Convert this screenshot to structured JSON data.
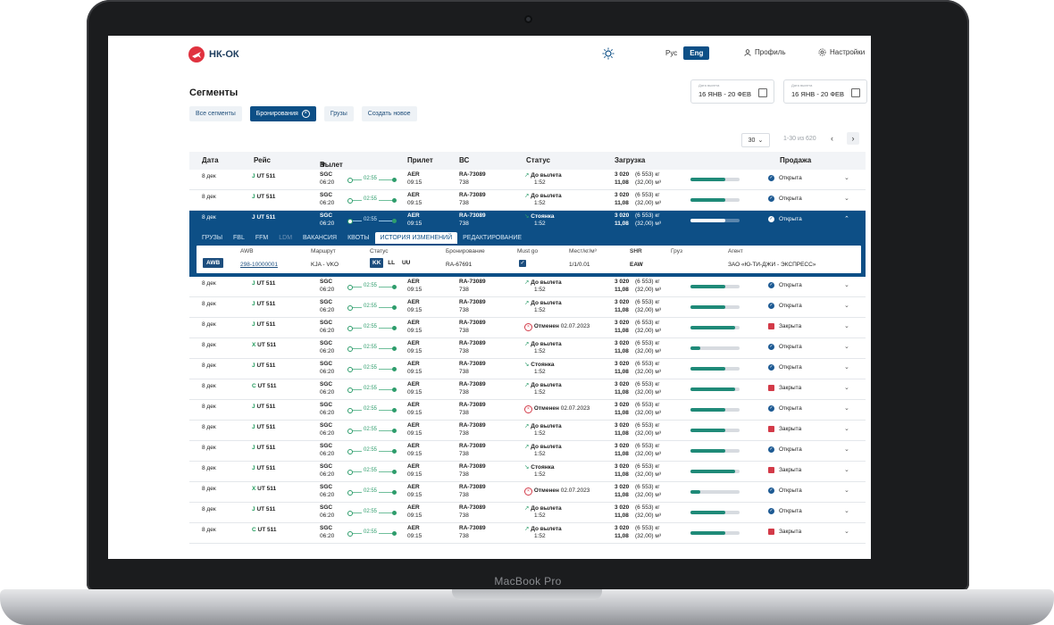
{
  "device": {
    "brand": "MacBook Pro"
  },
  "app": {
    "logo_text": "НК-ОК"
  },
  "header": {
    "lang_ru": "Рус",
    "lang_en": "Eng",
    "profile": "Профиль",
    "settings": "Настройки"
  },
  "page": {
    "title": "Сегменты"
  },
  "dates": {
    "from_label": "Дата вылета",
    "from_value": "16 ЯНВ - 20 ФЕВ",
    "to_label": "Дата вылета",
    "to_value": "16 ЯНВ - 20 ФЕВ"
  },
  "tabs": {
    "all": "Все сегменты",
    "bookings": "Бронирования",
    "cargo": "Грузы",
    "create": "Создать новое"
  },
  "pager": {
    "per_page": "30",
    "range": "1-30 из 620",
    "prev": "‹",
    "next": "›"
  },
  "columns": {
    "date": "Дата",
    "flight": "Рейс",
    "departure": "Вылет",
    "arrival": "Прилет",
    "aircraft": "ВС",
    "status": "Статус",
    "load": "Загрузка",
    "sale": "Продажа"
  },
  "rows": [
    {
      "date": "8 дек",
      "cls": "J",
      "flight": "UT 511",
      "dep": "SGC",
      "dep_time": "06:20",
      "dur": "02:55",
      "arr": "AER",
      "arr_time": "09:15",
      "ac": "RA-73089",
      "ac_type": "738",
      "status": "До вылета",
      "status_sub": "1:52",
      "status_kind": "up",
      "load1": "3 020",
      "load1_sub": "(6 553) кг",
      "load2": "11,08",
      "load2_sub": "(32,00) м³",
      "fill": 0.7,
      "sale": "Открыта",
      "sale_kind": "open"
    },
    {
      "date": "8 дек",
      "cls": "J",
      "flight": "UT 511",
      "dep": "SGC",
      "dep_time": "06:20",
      "dur": "02:55",
      "arr": "AER",
      "arr_time": "09:15",
      "ac": "RA-73089",
      "ac_type": "738",
      "status": "До вылета",
      "status_sub": "1:52",
      "status_kind": "up",
      "load1": "3 020",
      "load1_sub": "(6 553) кг",
      "load2": "11,08",
      "load2_sub": "(32,00) м³",
      "fill": 0.7,
      "sale": "Открыта",
      "sale_kind": "open"
    },
    {
      "date": "8 дек",
      "cls": "J",
      "flight": "UT 511",
      "dep": "SGC",
      "dep_time": "06:20",
      "dur": "02:55",
      "arr": "AER",
      "arr_time": "09:15",
      "ac": "RA-73089",
      "ac_type": "738",
      "status": "Стоянка",
      "status_sub": "1:52",
      "status_kind": "down",
      "load1": "3 020",
      "load1_sub": "(6 553) кг",
      "load2": "11,08",
      "load2_sub": "(32,00) м³",
      "fill": 0.7,
      "sale": "Открыта",
      "sale_kind": "open"
    },
    {
      "date": "8 дек",
      "cls": "J",
      "flight": "UT 511",
      "dep": "SGC",
      "dep_time": "06:20",
      "dur": "02:55",
      "arr": "AER",
      "arr_time": "09:15",
      "ac": "RA-73089",
      "ac_type": "738",
      "status": "До вылета",
      "status_sub": "1:52",
      "status_kind": "up",
      "load1": "3 020",
      "load1_sub": "(6 553) кг",
      "load2": "11,08",
      "load2_sub": "(32,00) м³",
      "fill": 0.7,
      "sale": "Открыта",
      "sale_kind": "open"
    },
    {
      "date": "8 дек",
      "cls": "J",
      "flight": "UT 511",
      "dep": "SGC",
      "dep_time": "06:20",
      "dur": "02:55",
      "arr": "AER",
      "arr_time": "09:15",
      "ac": "RA-73089",
      "ac_type": "738",
      "status": "До вылета",
      "status_sub": "1:52",
      "status_kind": "up",
      "load1": "3 020",
      "load1_sub": "(6 553) кг",
      "load2": "11,08",
      "load2_sub": "(32,00) м³",
      "fill": 0.7,
      "sale": "Открыта",
      "sale_kind": "open"
    },
    {
      "date": "8 дек",
      "cls": "J",
      "flight": "UT 511",
      "dep": "SGC",
      "dep_time": "06:20",
      "dur": "02:55",
      "arr": "AER",
      "arr_time": "09:15",
      "ac": "RA-73089",
      "ac_type": "738",
      "status": "Отменен",
      "status_sub": "02.07.2023",
      "status_kind": "cancel",
      "load1": "3 020",
      "load1_sub": "(6 553) кг",
      "load2": "11,08",
      "load2_sub": "(32,00) м³",
      "fill": 0.9,
      "sale": "Закрыта",
      "sale_kind": "closed"
    },
    {
      "date": "8 дек",
      "cls": "X",
      "flight": "UT 511",
      "dep": "SGC",
      "dep_time": "06:20",
      "dur": "02:55",
      "arr": "AER",
      "arr_time": "09:15",
      "ac": "RA-73089",
      "ac_type": "738",
      "status": "До вылета",
      "status_sub": "1:52",
      "status_kind": "up",
      "load1": "3 020",
      "load1_sub": "(6 553) кг",
      "load2": "11,08",
      "load2_sub": "(32,00) м³",
      "fill": 0.2,
      "sale": "Открыта",
      "sale_kind": "open"
    },
    {
      "date": "8 дек",
      "cls": "J",
      "flight": "UT 511",
      "dep": "SGC",
      "dep_time": "06:20",
      "dur": "02:55",
      "arr": "AER",
      "arr_time": "09:15",
      "ac": "RA-73089",
      "ac_type": "738",
      "status": "Стоянка",
      "status_sub": "1:52",
      "status_kind": "down",
      "load1": "3 020",
      "load1_sub": "(6 553) кг",
      "load2": "11,08",
      "load2_sub": "(32,00) м³",
      "fill": 0.7,
      "sale": "Открыта",
      "sale_kind": "open"
    },
    {
      "date": "8 дек",
      "cls": "C",
      "flight": "UT 511",
      "dep": "SGC",
      "dep_time": "06:20",
      "dur": "02:55",
      "arr": "AER",
      "arr_time": "09:15",
      "ac": "RA-73089",
      "ac_type": "738",
      "status": "До вылета",
      "status_sub": "1:52",
      "status_kind": "up",
      "load1": "3 020",
      "load1_sub": "(6 553) кг",
      "load2": "11,08",
      "load2_sub": "(32,00) м³",
      "fill": 0.9,
      "sale": "Закрыта",
      "sale_kind": "closed"
    },
    {
      "date": "8 дек",
      "cls": "J",
      "flight": "UT 511",
      "dep": "SGC",
      "dep_time": "06:20",
      "dur": "02:55",
      "arr": "AER",
      "arr_time": "09:15",
      "ac": "RA-73089",
      "ac_type": "738",
      "status": "Отменен",
      "status_sub": "02.07.2023",
      "status_kind": "cancel",
      "load1": "3 020",
      "load1_sub": "(6 553) кг",
      "load2": "11,08",
      "load2_sub": "(32,00) м³",
      "fill": 0.7,
      "sale": "Открыта",
      "sale_kind": "open"
    },
    {
      "date": "8 дек",
      "cls": "J",
      "flight": "UT 511",
      "dep": "SGC",
      "dep_time": "06:20",
      "dur": "02:55",
      "arr": "AER",
      "arr_time": "09:15",
      "ac": "RA-73089",
      "ac_type": "738",
      "status": "До вылета",
      "status_sub": "1:52",
      "status_kind": "up",
      "load1": "3 020",
      "load1_sub": "(6 553) кг",
      "load2": "11,08",
      "load2_sub": "(32,00) м³",
      "fill": 0.7,
      "sale": "Закрыта",
      "sale_kind": "closed"
    },
    {
      "date": "8 дек",
      "cls": "J",
      "flight": "UT 511",
      "dep": "SGC",
      "dep_time": "06:20",
      "dur": "02:55",
      "arr": "AER",
      "arr_time": "09:15",
      "ac": "RA-73089",
      "ac_type": "738",
      "status": "До вылета",
      "status_sub": "1:52",
      "status_kind": "up",
      "load1": "3 020",
      "load1_sub": "(6 553) кг",
      "load2": "11,08",
      "load2_sub": "(32,00) м³",
      "fill": 0.7,
      "sale": "Открыта",
      "sale_kind": "open"
    },
    {
      "date": "8 дек",
      "cls": "J",
      "flight": "UT 511",
      "dep": "SGC",
      "dep_time": "06:20",
      "dur": "02:55",
      "arr": "AER",
      "arr_time": "09:15",
      "ac": "RA-73089",
      "ac_type": "738",
      "status": "Стоянка",
      "status_sub": "1:52",
      "status_kind": "down",
      "load1": "3 020",
      "load1_sub": "(6 553) кг",
      "load2": "11,08",
      "load2_sub": "(32,00) м³",
      "fill": 0.9,
      "sale": "Закрыта",
      "sale_kind": "closed"
    },
    {
      "date": "8 дек",
      "cls": "X",
      "flight": "UT 511",
      "dep": "SGC",
      "dep_time": "06:20",
      "dur": "02:55",
      "arr": "AER",
      "arr_time": "09:15",
      "ac": "RA-73089",
      "ac_type": "738",
      "status": "Отменен",
      "status_sub": "02.07.2023",
      "status_kind": "cancel",
      "load1": "3 020",
      "load1_sub": "(6 553) кг",
      "load2": "11,08",
      "load2_sub": "(32,00) м³",
      "fill": 0.2,
      "sale": "Открыта",
      "sale_kind": "open"
    },
    {
      "date": "8 дек",
      "cls": "J",
      "flight": "UT 511",
      "dep": "SGC",
      "dep_time": "06:20",
      "dur": "02:55",
      "arr": "AER",
      "arr_time": "09:15",
      "ac": "RA-73089",
      "ac_type": "738",
      "status": "До вылета",
      "status_sub": "1:52",
      "status_kind": "up",
      "load1": "3 020",
      "load1_sub": "(6 553) кг",
      "load2": "11,08",
      "load2_sub": "(32,00) м³",
      "fill": 0.7,
      "sale": "Открыта",
      "sale_kind": "open"
    },
    {
      "date": "8 дек",
      "cls": "C",
      "flight": "UT 511",
      "dep": "SGC",
      "dep_time": "06:20",
      "dur": "02:55",
      "arr": "AER",
      "arr_time": "09:15",
      "ac": "RA-73089",
      "ac_type": "738",
      "status": "До вылета",
      "status_sub": "1:52",
      "status_kind": "up",
      "load1": "3 020",
      "load1_sub": "(6 553) кг",
      "load2": "11,08",
      "load2_sub": "(32,00) м³",
      "fill": 0.7,
      "sale": "Закрыта",
      "sale_kind": "closed"
    }
  ],
  "detail": {
    "subtabs": [
      "ГРУЗЫ",
      "FBL",
      "FFM",
      "LDM",
      "ВАКАНСИЯ",
      "КВОТЫ",
      "ИСТОРИЯ ИЗМЕНЕНИЙ",
      "РЕДАКТИРОВАНИЕ"
    ],
    "headers": {
      "awb": "AWB",
      "route": "Маршрут",
      "status": "Статус",
      "booking": "Бронирование",
      "must_go": "Must go",
      "places": "Мест/кг/м³",
      "shr": "SHR",
      "cargo": "Груз",
      "agent": "Агент"
    },
    "values": {
      "tag": "AWB",
      "awb": "298-10000001",
      "route": "KJA - VKO",
      "status_kk": "KK",
      "status_ll": "LL",
      "status_uu": "UU",
      "booking": "RA-67691",
      "places": "1/1/0.01",
      "shr": "EAW",
      "agent": "ЗАО «Ю-ТИ-ДЖИ - ЭКСПРЕСС»"
    }
  },
  "colors": {
    "primary": "#0d4f86",
    "accent_green": "#1f8a78",
    "danger": "#d33a48"
  }
}
